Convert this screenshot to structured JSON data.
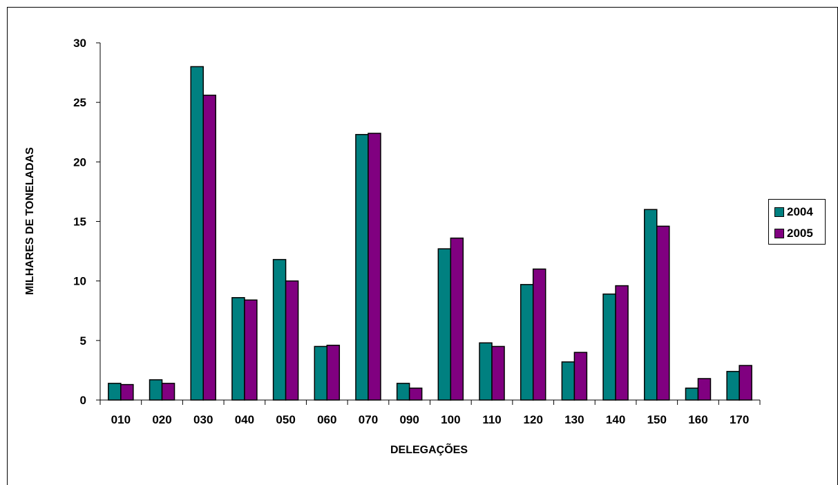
{
  "chart_data": {
    "type": "bar",
    "xlabel": "DELEGAÇÕES",
    "ylabel": "MILHARES DE TONELADAS",
    "ylim": [
      0,
      30
    ],
    "yticks": [
      "0",
      "5",
      "10",
      "15",
      "20",
      "25",
      "30"
    ],
    "categories": [
      "010",
      "020",
      "030",
      "040",
      "050",
      "060",
      "070",
      "090",
      "100",
      "110",
      "120",
      "130",
      "140",
      "150",
      "160",
      "170"
    ],
    "series": [
      {
        "name": "2004",
        "color": "#008080",
        "values": [
          1.4,
          1.7,
          28.0,
          8.6,
          11.8,
          4.5,
          22.3,
          1.4,
          12.7,
          4.8,
          9.7,
          3.2,
          8.9,
          16.0,
          1.0,
          2.4
        ]
      },
      {
        "name": "2005",
        "color": "#800080",
        "values": [
          1.3,
          1.4,
          25.6,
          8.4,
          10.0,
          4.6,
          22.4,
          1.0,
          13.6,
          4.5,
          11.0,
          4.0,
          9.6,
          14.6,
          1.8,
          2.9
        ]
      }
    ],
    "grid": false,
    "legend_position": "right"
  }
}
